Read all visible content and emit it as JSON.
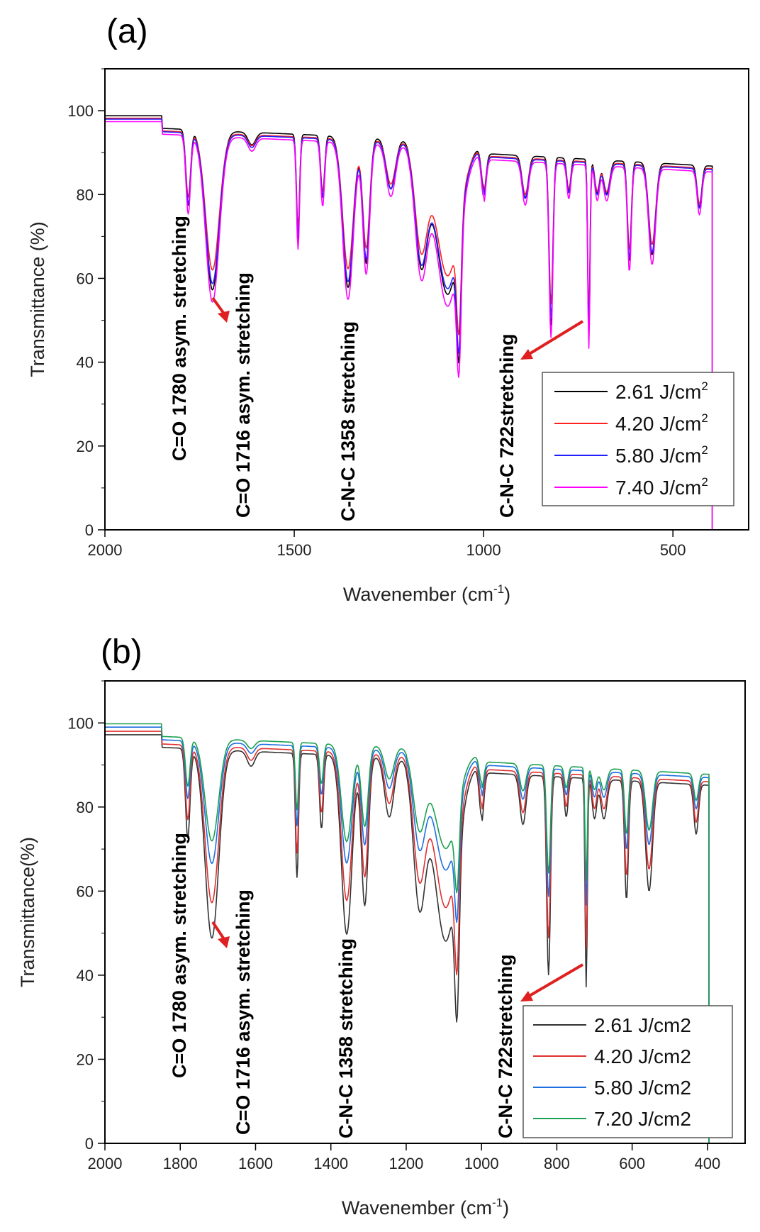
{
  "chart_data": [
    {
      "panel": "(a)",
      "type": "line",
      "xlabel": "Wavenember (cm",
      "xlabel_sup": "-1",
      "xlabel_close": ")",
      "ylabel": "Transmittance (%)",
      "xlim": [
        2000,
        300
      ],
      "ylim": [
        0,
        110
      ],
      "xticks": [
        2000,
        1500,
        1000,
        500
      ],
      "yticks": [
        0,
        20,
        40,
        60,
        80,
        100
      ],
      "legend_position": "bottom-right",
      "legend": [
        {
          "label": "2.61 J/cm",
          "sup": "2",
          "color": "#000000"
        },
        {
          "label": "4.20 J/cm",
          "sup": "2",
          "color": "#ff2020"
        },
        {
          "label": "5.80 J/cm",
          "sup": "2",
          "color": "#2020ff"
        },
        {
          "label": "7.40 J/cm",
          "sup": "2",
          "color": "#ff00ff"
        }
      ],
      "annotations": [
        {
          "text": "C=O 1780 asym. stretching",
          "x": 1780
        },
        {
          "text": "C=O 1716 asym. stretching",
          "x": 1716
        },
        {
          "text": "C-N-C  1358 stretching",
          "x": 1358
        },
        {
          "text": "C-N-C 722stretching",
          "x": 722
        }
      ],
      "series_offsets": [
        {
          "name": "2.61 J/cm2",
          "color": "#000000",
          "depth": 1.0
        },
        {
          "name": "4.20 J/cm2",
          "color": "#ff2020",
          "depth": 0.86
        },
        {
          "name": "5.80 J/cm2",
          "color": "#2020ff",
          "depth": 0.94
        },
        {
          "name": "7.40 J/cm2",
          "color": "#ff00ff",
          "depth": 1.04
        }
      ]
    },
    {
      "panel": "(b)",
      "type": "line",
      "xlabel": "Wavenember (cm",
      "xlabel_sup": "-1",
      "xlabel_close": ")",
      "ylabel": "Transmittance(%)",
      "xlim": [
        2000,
        300
      ],
      "ylim": [
        0,
        110
      ],
      "xticks": [
        2000,
        1800,
        1600,
        1400,
        1200,
        1000,
        800,
        600,
        400
      ],
      "yticks": [
        0,
        20,
        40,
        60,
        80,
        100
      ],
      "legend_position": "bottom-right",
      "legend": [
        {
          "label": "2.61 J/cm2",
          "color": "#333333"
        },
        {
          "label": "4.20 J/cm2",
          "color": "#e03030"
        },
        {
          "label": "5.80 J/cm2",
          "color": "#1e6fe0"
        },
        {
          "label": "7.20 J/cm2",
          "color": "#1aa050"
        }
      ],
      "annotations": [
        {
          "text": "C=O 1780 asym. stretching",
          "x": 1780
        },
        {
          "text": "C=O 1716 asym. stretching",
          "x": 1716
        },
        {
          "text": "C-N-C  1358 stretching",
          "x": 1358
        },
        {
          "text": "C-N-C 722stretching",
          "x": 722
        }
      ],
      "series_offsets": [
        {
          "name": "2.61 J/cm2",
          "color": "#333333",
          "depth": 1.18
        },
        {
          "name": "4.20 J/cm2",
          "color": "#e03030",
          "depth": 0.98
        },
        {
          "name": "5.80 J/cm2",
          "color": "#1e6fe0",
          "depth": 0.76
        },
        {
          "name": "7.20 J/cm2",
          "color": "#1aa050",
          "depth": 0.64
        }
      ]
    }
  ],
  "baseline_peaks": [
    {
      "x": 1780,
      "depth": 18,
      "w": 6
    },
    {
      "x": 1716,
      "depth": 38,
      "w": 18
    },
    {
      "x": 1612,
      "depth": 3,
      "w": 10
    },
    {
      "x": 1490,
      "depth": 25,
      "w": 4
    },
    {
      "x": 1425,
      "depth": 15,
      "w": 5
    },
    {
      "x": 1358,
      "depth": 36,
      "w": 14
    },
    {
      "x": 1310,
      "depth": 30,
      "w": 9
    },
    {
      "x": 1245,
      "depth": 12,
      "w": 12
    },
    {
      "x": 1165,
      "depth": 28,
      "w": 16
    },
    {
      "x": 1095,
      "depth": 36,
      "w": 30
    },
    {
      "x": 1065,
      "depth": 30,
      "w": 6
    },
    {
      "x": 1000,
      "depth": 10,
      "w": 6
    },
    {
      "x": 890,
      "depth": 10,
      "w": 8
    },
    {
      "x": 822,
      "depth": 40,
      "w": 5
    },
    {
      "x": 775,
      "depth": 8,
      "w": 5
    },
    {
      "x": 722,
      "depth": 42,
      "w": 3
    },
    {
      "x": 700,
      "depth": 8,
      "w": 6
    },
    {
      "x": 675,
      "depth": 8,
      "w": 8
    },
    {
      "x": 615,
      "depth": 24,
      "w": 5
    },
    {
      "x": 555,
      "depth": 22,
      "w": 9
    },
    {
      "x": 430,
      "depth": 10,
      "w": 6
    }
  ]
}
